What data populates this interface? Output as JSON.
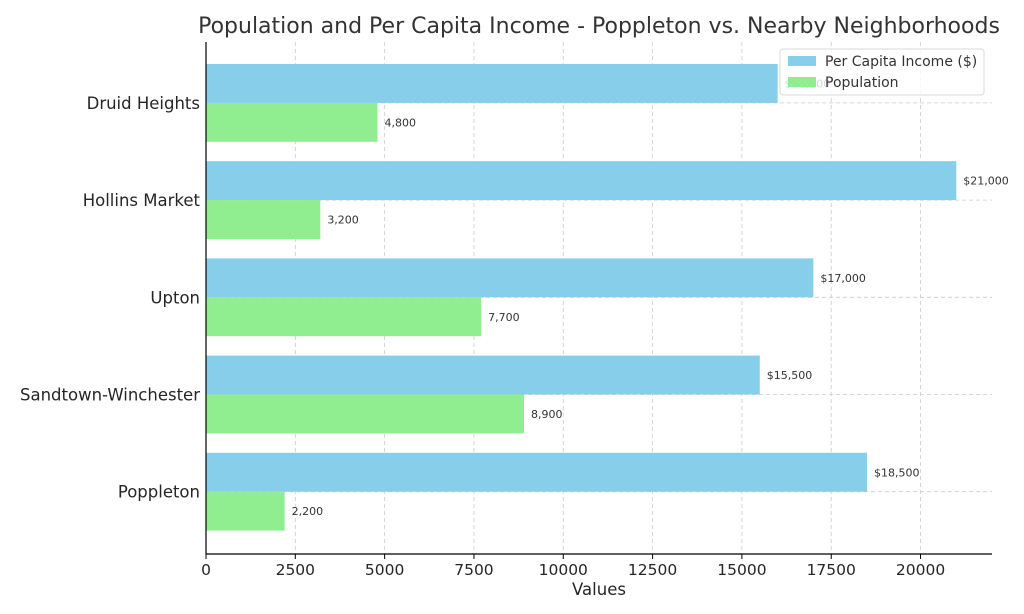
{
  "chart_data": {
    "type": "bar",
    "orientation": "horizontal",
    "title": "Population and Per Capita Income - Poppleton vs. Nearby Neighborhoods",
    "xlabel": "Values",
    "ylabel": "",
    "categories": [
      "Druid Heights",
      "Hollins Market",
      "Upton",
      "Sandtown-Winchester",
      "Poppleton"
    ],
    "series": [
      {
        "name": "Per Capita Income ($)",
        "color": "#87ceeb",
        "values": [
          16000,
          21000,
          17000,
          15500,
          18500
        ],
        "labels": [
          "$16,000",
          "$21,000",
          "$17,000",
          "$15,500",
          "$18,500"
        ]
      },
      {
        "name": "Population",
        "color": "#90ee90",
        "values": [
          4800,
          3200,
          7700,
          8900,
          2200
        ],
        "labels": [
          "4,800",
          "3,200",
          "7,700",
          "8,900",
          "2,200"
        ]
      }
    ],
    "xlim": [
      0,
      22000
    ],
    "xticks": [
      0,
      2500,
      5000,
      7500,
      10000,
      12500,
      15000,
      17500,
      20000
    ],
    "xtick_labels": [
      "0",
      "2500",
      "5000",
      "7500",
      "10000",
      "12500",
      "15000",
      "17500",
      "20000"
    ],
    "grid": true,
    "legend_position": "top-right"
  }
}
